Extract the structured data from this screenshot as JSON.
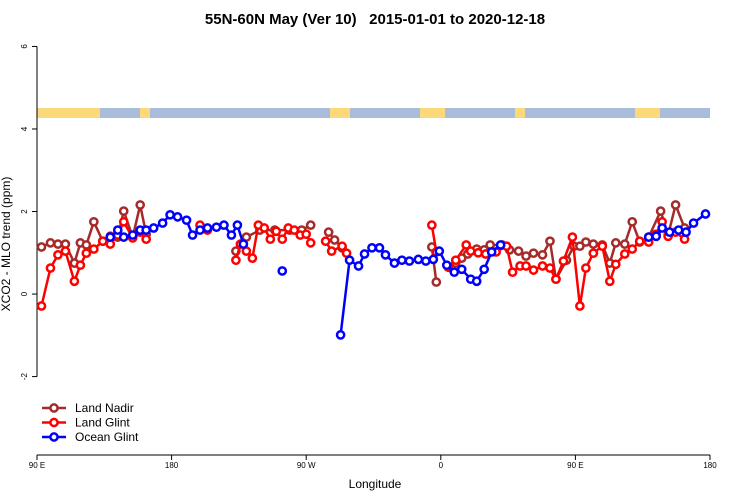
{
  "chart_data": {
    "type": "line",
    "title": "55N-60N May (Ver 10)   2015-01-01 to 2020-12-18",
    "x_label": "Longitude",
    "y_label": "XCO2 - MLO trend (ppm)",
    "xlim": [
      90,
      540
    ],
    "ylim": [
      -3.9,
      6.35
    ],
    "xticks": [
      {
        "value": 90,
        "label": "90 E"
      },
      {
        "value": 180,
        "label": "180"
      },
      {
        "value": 270,
        "label": "90 W"
      },
      {
        "value": 360,
        "label": "0"
      },
      {
        "value": 450,
        "label": "90 E"
      },
      {
        "value": 540,
        "label": "180"
      }
    ],
    "yticks": [
      -2,
      0,
      2,
      4,
      6
    ],
    "legend": "bottom-left",
    "series": [
      {
        "name": "Land Nadir",
        "color": "#a52a2a",
        "x": [
          93,
          99,
          104,
          109,
          115,
          119,
          123,
          128,
          134,
          139,
          144,
          148,
          154,
          159,
          163,
          null,
          223,
          230,
          239,
          249,
          259,
          267,
          273,
          null,
          285,
          289,
          294,
          null,
          354,
          357,
          null,
          370,
          374,
          378,
          384,
          389,
          393,
          401,
          406,
          412,
          417,
          422,
          428,
          433,
          437,
          444,
          449,
          453,
          457,
          462,
          468,
          473,
          477,
          483,
          488,
          493,
          499,
          507,
          512,
          517,
          523
        ],
        "values": [
          1.14,
          1.24,
          1.21,
          1.21,
          0.75,
          1.24,
          1.19,
          1.75,
          1.28,
          1.4,
          1.38,
          2.01,
          1.38,
          2.16,
          1.45,
          null,
          1.04,
          1.38,
          1.55,
          1.55,
          1.55,
          1.55,
          1.67,
          null,
          1.5,
          1.31,
          1.12,
          null,
          1.14,
          0.29,
          null,
          0.75,
          0.87,
          0.97,
          1.09,
          1.07,
          1.19,
          1.19,
          1.07,
          1.04,
          0.92,
          0.99,
          0.95,
          1.28,
          0.36,
          0.82,
          1.16,
          1.16,
          1.26,
          1.21,
          1.19,
          0.75,
          1.24,
          1.21,
          1.75,
          1.26,
          1.38,
          2.01,
          1.43,
          2.16,
          1.6
        ]
      },
      {
        "name": "Land Glint",
        "color": "#ff0000",
        "x": [
          93,
          99,
          104,
          109,
          115,
          119,
          123,
          128,
          134,
          139,
          144,
          148,
          154,
          159,
          163,
          null,
          199,
          204,
          null,
          223,
          226,
          230,
          234,
          238,
          242,
          246,
          250,
          254,
          258,
          262,
          266,
          270,
          273,
          null,
          283,
          287,
          294,
          297,
          null,
          354,
          357,
          null,
          365,
          370,
          377,
          380,
          385,
          390,
          397,
          404,
          408,
          413,
          417,
          422,
          428,
          433,
          437,
          442,
          448,
          453,
          457,
          462,
          468,
          473,
          477,
          483,
          488,
          493,
          499,
          504,
          508,
          512,
          517,
          523
        ],
        "values": [
          -0.29,
          0.63,
          0.95,
          1.04,
          0.31,
          0.7,
          0.99,
          1.09,
          1.28,
          1.21,
          1.43,
          1.75,
          1.36,
          1.5,
          1.33,
          null,
          1.67,
          1.55,
          null,
          0.82,
          1.21,
          1.04,
          0.87,
          1.67,
          1.6,
          1.33,
          1.52,
          1.33,
          1.6,
          1.55,
          1.43,
          1.45,
          1.24,
          null,
          1.28,
          1.04,
          1.16,
          0.99,
          null,
          1.67,
          1.02,
          null,
          0.65,
          0.82,
          1.19,
          1.04,
          1.0,
          0.97,
          1.02,
          1.16,
          0.53,
          0.68,
          0.68,
          0.58,
          0.68,
          0.63,
          0.36,
          0.8,
          1.38,
          -0.29,
          0.63,
          0.99,
          1.16,
          0.31,
          0.72,
          0.97,
          1.09,
          1.28,
          1.26,
          1.45,
          1.75,
          1.4,
          1.5,
          1.33
        ]
      },
      {
        "name": "Ocean Glint",
        "color": "#0000ff",
        "x": [
          139,
          144,
          148,
          154,
          159,
          163,
          168,
          174,
          179,
          184,
          190,
          194,
          199,
          204,
          210,
          215,
          220,
          224,
          228,
          null,
          254,
          null,
          293,
          299,
          305,
          309,
          314,
          319,
          323,
          329,
          334,
          339,
          345,
          350,
          355,
          359,
          364,
          369,
          374,
          380,
          384,
          389,
          394,
          400,
          null,
          499,
          504,
          508,
          513,
          519,
          524,
          529,
          537
        ],
        "values": [
          1.38,
          1.55,
          1.38,
          1.43,
          1.55,
          1.55,
          1.6,
          1.72,
          1.92,
          1.87,
          1.79,
          1.43,
          1.55,
          1.6,
          1.62,
          1.67,
          1.43,
          1.67,
          1.21,
          null,
          0.56,
          null,
          -0.99,
          0.82,
          0.68,
          0.97,
          1.12,
          1.12,
          0.95,
          0.75,
          0.82,
          0.8,
          0.84,
          0.8,
          0.84,
          1.04,
          0.7,
          0.53,
          0.6,
          0.36,
          0.31,
          0.6,
          1.02,
          1.19,
          null,
          1.38,
          1.4,
          1.6,
          1.5,
          1.55,
          1.5,
          1.72,
          1.94
        ]
      }
    ]
  }
}
